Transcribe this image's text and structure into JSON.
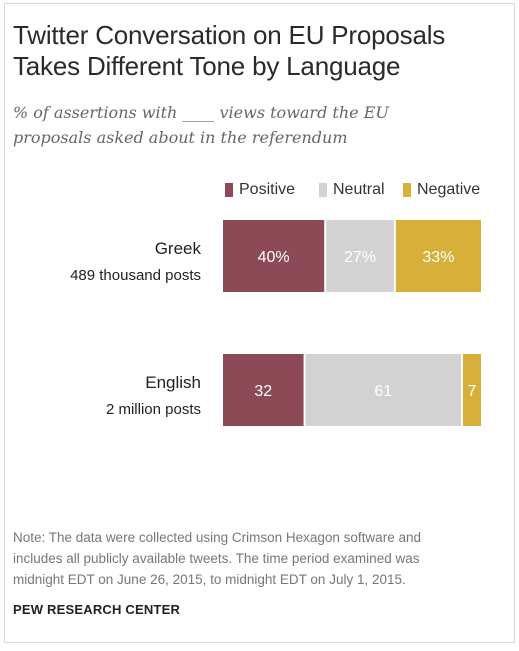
{
  "header": {
    "title_line1": "Twitter Conversation on EU Proposals",
    "title_line2": "Takes Different Tone by Language",
    "subtitle_line1": "% of assertions with ____ views toward the EU",
    "subtitle_line2": "proposals asked about in the referendum"
  },
  "colors": {
    "positive": "#8b4a55",
    "neutral": "#d2d2d2",
    "negative": "#d6b03a",
    "label_text": "#ffffff"
  },
  "chart_data": {
    "type": "bar",
    "orientation": "horizontal",
    "stacked": true,
    "legend_position": "top",
    "grid": false,
    "xlim": [
      0,
      100
    ],
    "categories": [
      {
        "label": "Greek",
        "sublabel": "489 thousand posts"
      },
      {
        "label": "English",
        "sublabel": "2 million posts"
      }
    ],
    "series": [
      {
        "name": "Positive",
        "values": [
          40,
          32
        ],
        "display": [
          "40%",
          "32"
        ]
      },
      {
        "name": "Neutral",
        "values": [
          27,
          61
        ],
        "display": [
          "27%",
          "61"
        ]
      },
      {
        "name": "Negative",
        "values": [
          33,
          7
        ],
        "display": [
          "33%",
          "7"
        ]
      }
    ]
  },
  "footer": {
    "note_line1": "Note: The data were collected using Crimson Hexagon software and",
    "note_line2": "includes all publicly available tweets. The time period examined was",
    "note_line3": "midnight EDT on June 26, 2015, to midnight EDT on July 1, 2015.",
    "source": "PEW RESEARCH CENTER"
  }
}
